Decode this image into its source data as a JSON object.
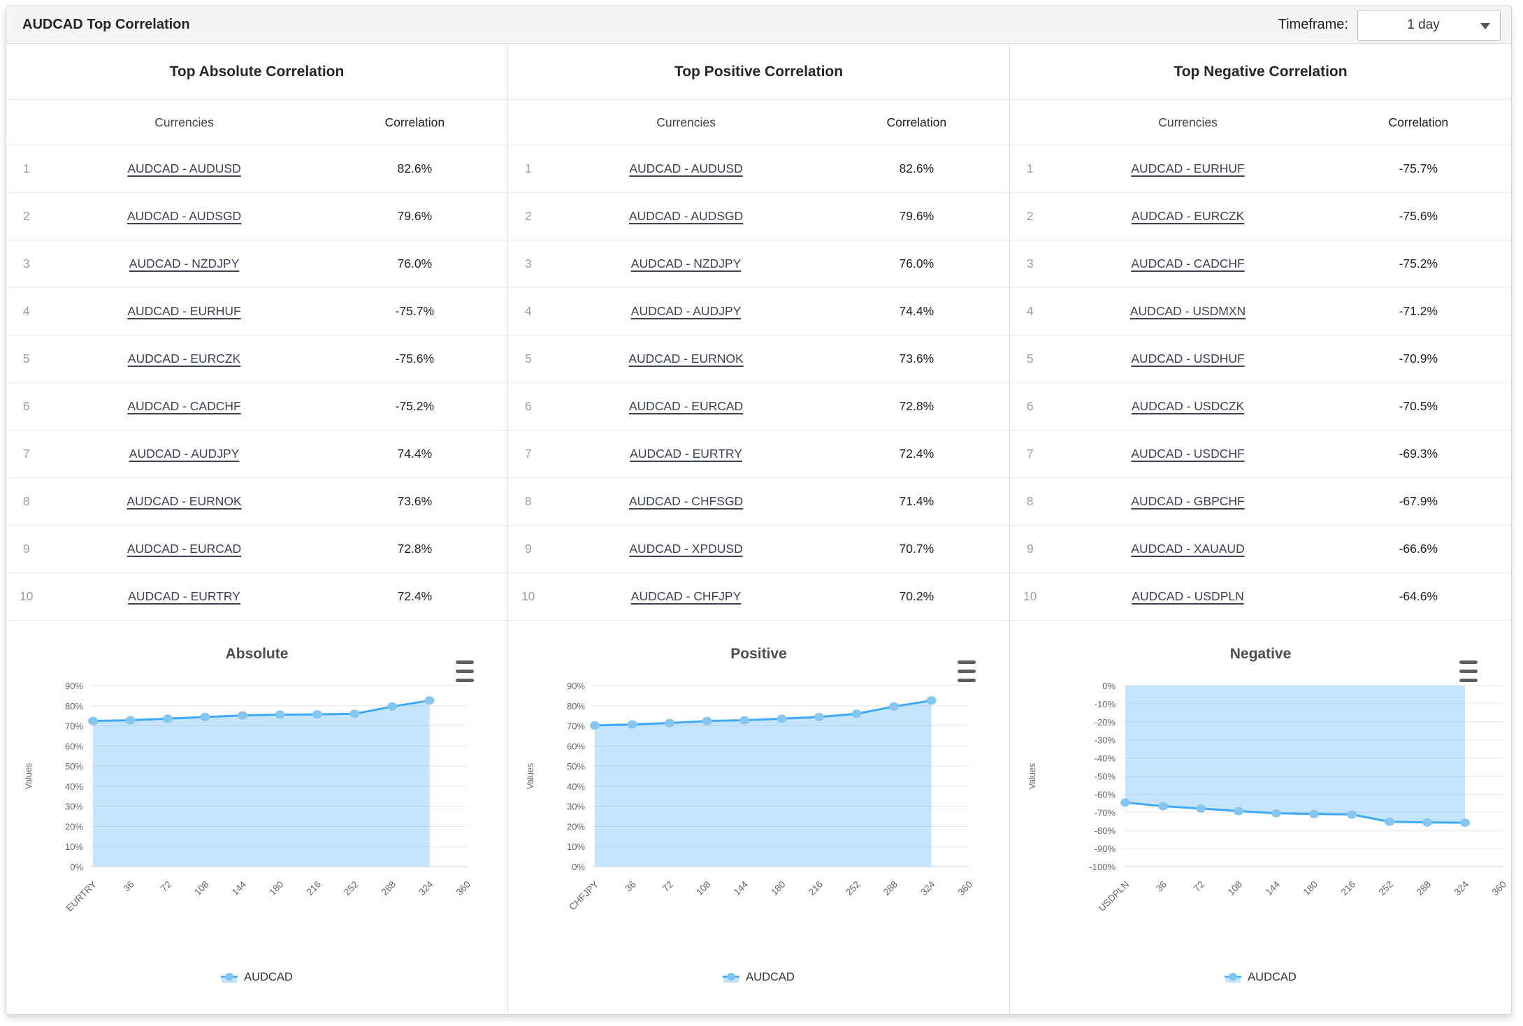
{
  "colors": {
    "header_bg": "#f5f5f6",
    "card_border": "#d5d5d5",
    "row_border": "#e9e9e9",
    "panel_border": "#e0e0e0",
    "link": "#3d4156",
    "rank_gray": "#9e9e9e",
    "grid": "#e6e6e6",
    "axis_line": "#ccd6eb",
    "line": "#3fa9f5",
    "area_fill": "#c9e7fb",
    "marker": "#85c7f2",
    "legend_text": "#333333"
  },
  "header": {
    "title": "AUDCAD Top Correlation",
    "timeframe_label": "Timeframe:",
    "timeframe_value": "1 day"
  },
  "tables": [
    {
      "id": "absolute",
      "title": "Top Absolute Correlation",
      "columns": {
        "currencies": "Currencies",
        "correlation": "Correlation"
      },
      "rows": [
        {
          "rank": "1",
          "pair": "AUDCAD - AUDUSD",
          "correlation": "82.6%"
        },
        {
          "rank": "2",
          "pair": "AUDCAD - AUDSGD",
          "correlation": "79.6%"
        },
        {
          "rank": "3",
          "pair": "AUDCAD - NZDJPY",
          "correlation": "76.0%"
        },
        {
          "rank": "4",
          "pair": "AUDCAD - EURHUF",
          "correlation": "-75.7%"
        },
        {
          "rank": "5",
          "pair": "AUDCAD - EURCZK",
          "correlation": "-75.6%"
        },
        {
          "rank": "6",
          "pair": "AUDCAD - CADCHF",
          "correlation": "-75.2%"
        },
        {
          "rank": "7",
          "pair": "AUDCAD - AUDJPY",
          "correlation": "74.4%"
        },
        {
          "rank": "8",
          "pair": "AUDCAD - EURNOK",
          "correlation": "73.6%"
        },
        {
          "rank": "9",
          "pair": "AUDCAD - EURCAD",
          "correlation": "72.8%"
        },
        {
          "rank": "10",
          "pair": "AUDCAD - EURTRY",
          "correlation": "72.4%"
        }
      ]
    },
    {
      "id": "positive",
      "title": "Top Positive Correlation",
      "columns": {
        "currencies": "Currencies",
        "correlation": "Correlation"
      },
      "rows": [
        {
          "rank": "1",
          "pair": "AUDCAD - AUDUSD",
          "correlation": "82.6%"
        },
        {
          "rank": "2",
          "pair": "AUDCAD - AUDSGD",
          "correlation": "79.6%"
        },
        {
          "rank": "3",
          "pair": "AUDCAD - NZDJPY",
          "correlation": "76.0%"
        },
        {
          "rank": "4",
          "pair": "AUDCAD - AUDJPY",
          "correlation": "74.4%"
        },
        {
          "rank": "5",
          "pair": "AUDCAD - EURNOK",
          "correlation": "73.6%"
        },
        {
          "rank": "6",
          "pair": "AUDCAD - EURCAD",
          "correlation": "72.8%"
        },
        {
          "rank": "7",
          "pair": "AUDCAD - EURTRY",
          "correlation": "72.4%"
        },
        {
          "rank": "8",
          "pair": "AUDCAD - CHFSGD",
          "correlation": "71.4%"
        },
        {
          "rank": "9",
          "pair": "AUDCAD - XPDUSD",
          "correlation": "70.7%"
        },
        {
          "rank": "10",
          "pair": "AUDCAD - CHFJPY",
          "correlation": "70.2%"
        }
      ]
    },
    {
      "id": "negative",
      "title": "Top Negative Correlation",
      "columns": {
        "currencies": "Currencies",
        "correlation": "Correlation"
      },
      "rows": [
        {
          "rank": "1",
          "pair": "AUDCAD - EURHUF",
          "correlation": "-75.7%"
        },
        {
          "rank": "2",
          "pair": "AUDCAD - EURCZK",
          "correlation": "-75.6%"
        },
        {
          "rank": "3",
          "pair": "AUDCAD - CADCHF",
          "correlation": "-75.2%"
        },
        {
          "rank": "4",
          "pair": "AUDCAD - USDMXN",
          "correlation": "-71.2%"
        },
        {
          "rank": "5",
          "pair": "AUDCAD - USDHUF",
          "correlation": "-70.9%"
        },
        {
          "rank": "6",
          "pair": "AUDCAD - USDCZK",
          "correlation": "-70.5%"
        },
        {
          "rank": "7",
          "pair": "AUDCAD - USDCHF",
          "correlation": "-69.3%"
        },
        {
          "rank": "8",
          "pair": "AUDCAD - GBPCHF",
          "correlation": "-67.9%"
        },
        {
          "rank": "9",
          "pair": "AUDCAD - XAUAUD",
          "correlation": "-66.6%"
        },
        {
          "rank": "10",
          "pair": "AUDCAD - USDPLN",
          "correlation": "-64.6%"
        }
      ]
    }
  ],
  "chart_data": [
    {
      "type": "area",
      "title": "Absolute",
      "ylabel": "Values",
      "ylim": [
        0,
        90
      ],
      "y_tick_step": 10,
      "grid": true,
      "legend_position": "bottom",
      "x_tick_labels": [
        "EURTRY",
        "36",
        "72",
        "108",
        "144",
        "180",
        "216",
        "252",
        "288",
        "324",
        "360"
      ],
      "series": [
        {
          "name": "AUDCAD",
          "values": [
            72.4,
            72.8,
            73.6,
            74.4,
            75.2,
            75.6,
            75.7,
            76.0,
            79.6,
            82.6
          ]
        }
      ]
    },
    {
      "type": "area",
      "title": "Positive",
      "ylabel": "Values",
      "ylim": [
        0,
        90
      ],
      "y_tick_step": 10,
      "grid": true,
      "legend_position": "bottom",
      "x_tick_labels": [
        "CHFJPY",
        "36",
        "72",
        "108",
        "144",
        "180",
        "216",
        "252",
        "288",
        "324",
        "360"
      ],
      "series": [
        {
          "name": "AUDCAD",
          "values": [
            70.2,
            70.7,
            71.4,
            72.4,
            72.8,
            73.6,
            74.4,
            76.0,
            79.6,
            82.6
          ]
        }
      ]
    },
    {
      "type": "area",
      "title": "Negative",
      "ylabel": "Values",
      "ylim": [
        -100,
        0
      ],
      "y_tick_step": 10,
      "grid": true,
      "legend_position": "bottom",
      "x_tick_labels": [
        "USDPLN",
        "36",
        "72",
        "108",
        "144",
        "180",
        "216",
        "252",
        "288",
        "324",
        "360"
      ],
      "series": [
        {
          "name": "AUDCAD",
          "values": [
            -64.6,
            -66.6,
            -67.9,
            -69.3,
            -70.5,
            -70.9,
            -71.2,
            -75.2,
            -75.6,
            -75.7
          ]
        }
      ]
    }
  ]
}
